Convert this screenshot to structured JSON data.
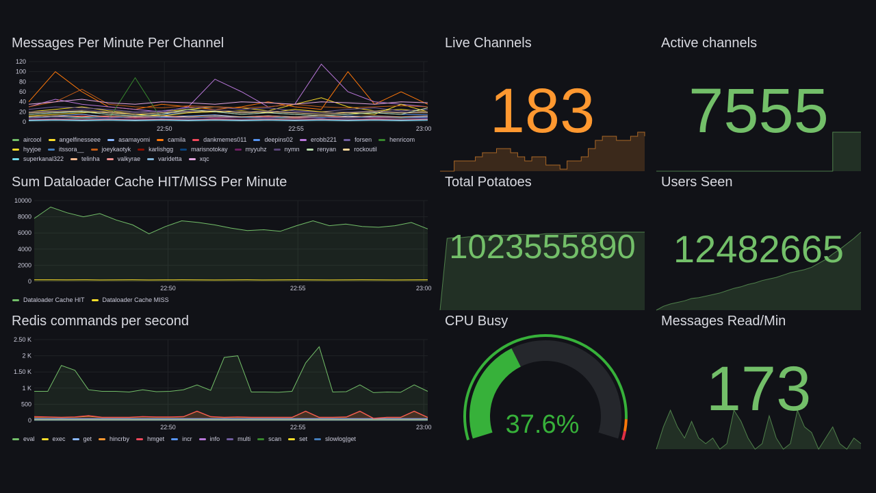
{
  "time_ticks": [
    "22:50",
    "22:55",
    "23:00"
  ],
  "colors": {
    "green": "#73bf69",
    "orange": "#ff9830",
    "gauge_green": "#37b13a",
    "red": "#e02f44",
    "track": "#25272c"
  },
  "panels": {
    "messages": {
      "title": "Messages Per Minute Per Channel"
    },
    "dataloader": {
      "title": "Sum Dataloader Cache HIT/MISS Per Minute"
    },
    "redis": {
      "title": "Redis commands per second"
    },
    "live_channels": {
      "title": "Live Channels",
      "value": "183"
    },
    "active_channels": {
      "title": "Active channels",
      "value": "7555"
    },
    "total_potatoes": {
      "title": "Total Potatoes",
      "value": "1023555890"
    },
    "users_seen": {
      "title": "Users Seen",
      "value": "12482665"
    },
    "cpu_busy": {
      "title": "CPU Busy",
      "value": "37.6%",
      "percent": 37.6
    },
    "messages_read": {
      "title": "Messages Read/Min",
      "value": "173"
    }
  },
  "chart_data": [
    {
      "type": "line",
      "title": "Messages Per Minute Per Channel",
      "x_ticks": [
        "22:50",
        "22:55",
        "23:00"
      ],
      "ylim": [
        0,
        120
      ],
      "y_ticks": [
        "0",
        "20",
        "40",
        "60",
        "80",
        "100",
        "120"
      ],
      "series": [
        {
          "name": "aircool",
          "color": "#73bf69",
          "values": [
            5,
            6,
            8,
            6,
            5,
            7,
            6,
            5,
            6,
            8,
            7,
            6,
            5,
            6,
            7,
            6
          ]
        },
        {
          "name": "angelfinesseee",
          "color": "#fade2a",
          "values": [
            20,
            25,
            30,
            22,
            18,
            20,
            25,
            30,
            28,
            22,
            35,
            48,
            30,
            22,
            25,
            20
          ]
        },
        {
          "name": "asamayomi",
          "color": "#8ab8ff",
          "values": [
            10,
            12,
            15,
            10,
            8,
            10,
            12,
            14,
            10,
            12,
            10,
            8,
            12,
            10,
            9,
            10
          ]
        },
        {
          "name": "camila",
          "color": "#ff780a",
          "values": [
            40,
            100,
            60,
            30,
            25,
            35,
            30,
            25,
            30,
            40,
            30,
            25,
            100,
            35,
            60,
            35
          ]
        },
        {
          "name": "dankmemes011",
          "color": "#f2495c",
          "values": [
            8,
            10,
            12,
            10,
            8,
            9,
            10,
            8,
            9,
            10,
            8,
            9,
            10,
            8,
            9,
            8
          ]
        },
        {
          "name": "deepins02",
          "color": "#5794f2",
          "values": [
            15,
            18,
            20,
            15,
            12,
            15,
            18,
            20,
            15,
            18,
            15,
            12,
            15,
            18,
            15,
            14
          ]
        },
        {
          "name": "erobb221",
          "color": "#b877d9",
          "values": [
            30,
            45,
            35,
            30,
            25,
            20,
            30,
            85,
            60,
            30,
            35,
            115,
            60,
            40,
            35,
            30
          ]
        },
        {
          "name": "forsen",
          "color": "#705da0",
          "values": [
            25,
            30,
            28,
            25,
            20,
            22,
            28,
            30,
            25,
            28,
            22,
            20,
            25,
            28,
            22,
            25
          ]
        },
        {
          "name": "henricom",
          "color": "#37872d",
          "values": [
            5,
            5,
            6,
            5,
            88,
            5,
            6,
            5,
            5,
            6,
            5,
            5,
            6,
            5,
            5,
            5
          ]
        },
        {
          "name": "hyyjoe",
          "color": "#fade2a",
          "values": [
            12,
            15,
            18,
            20,
            15,
            12,
            18,
            20,
            22,
            18,
            25,
            20,
            18,
            15,
            35,
            20
          ]
        },
        {
          "name": "itssora__",
          "color": "#447ebc",
          "values": [
            8,
            10,
            9,
            8,
            10,
            9,
            8,
            10,
            9,
            8,
            10,
            9,
            8,
            10,
            9,
            8
          ]
        },
        {
          "name": "joeykaotyk",
          "color": "#c15c17",
          "values": [
            30,
            40,
            65,
            35,
            30,
            28,
            32,
            30,
            28,
            30,
            35,
            30,
            28,
            30,
            32,
            30
          ]
        },
        {
          "name": "karlishgg",
          "color": "#890f02",
          "values": [
            3,
            4,
            3,
            4,
            3,
            4,
            3,
            4,
            3,
            4,
            3,
            4,
            3,
            4,
            3,
            4
          ]
        },
        {
          "name": "marisnotokay",
          "color": "#0a437c",
          "values": [
            5,
            6,
            5,
            6,
            5,
            6,
            5,
            6,
            5,
            6,
            5,
            6,
            5,
            6,
            5,
            6
          ]
        },
        {
          "name": "myyuhz",
          "color": "#6d1f62",
          "values": [
            6,
            7,
            6,
            7,
            6,
            7,
            6,
            7,
            6,
            7,
            6,
            7,
            6,
            7,
            6,
            7
          ]
        },
        {
          "name": "nymn",
          "color": "#584477",
          "values": [
            20,
            22,
            25,
            20,
            18,
            20,
            22,
            25,
            20,
            22,
            20,
            18,
            20,
            22,
            20,
            20
          ]
        },
        {
          "name": "renyan",
          "color": "#b7dbab",
          "values": [
            15,
            18,
            20,
            15,
            12,
            15,
            25,
            20,
            15,
            18,
            15,
            12,
            15,
            18,
            15,
            28
          ]
        },
        {
          "name": "rockoutil",
          "color": "#f4d598",
          "values": [
            18,
            20,
            22,
            18,
            15,
            18,
            20,
            22,
            18,
            20,
            18,
            15,
            18,
            20,
            18,
            18
          ]
        },
        {
          "name": "superkanal322",
          "color": "#70dbed",
          "values": [
            2,
            3,
            2,
            3,
            2,
            3,
            2,
            3,
            2,
            3,
            2,
            3,
            2,
            3,
            2,
            3
          ]
        },
        {
          "name": "telinha",
          "color": "#f9ba8f",
          "values": [
            10,
            12,
            10,
            12,
            10,
            12,
            10,
            12,
            10,
            12,
            10,
            12,
            10,
            12,
            10,
            12
          ]
        },
        {
          "name": "valkyrae",
          "color": "#f29191",
          "values": [
            4,
            5,
            4,
            5,
            4,
            5,
            4,
            5,
            4,
            5,
            4,
            5,
            4,
            5,
            4,
            5
          ]
        },
        {
          "name": "varidetta",
          "color": "#82b5d8",
          "values": [
            3,
            4,
            3,
            4,
            3,
            4,
            3,
            4,
            3,
            4,
            3,
            4,
            3,
            4,
            3,
            4
          ]
        },
        {
          "name": "xqc",
          "color": "#e5a8e2",
          "values": [
            35,
            40,
            45,
            38,
            35,
            40,
            38,
            35,
            40,
            38,
            35,
            40,
            38,
            35,
            40,
            38
          ]
        }
      ]
    },
    {
      "type": "area",
      "title": "Sum Dataloader Cache HIT/MISS Per Minute",
      "x_ticks": [
        "22:50",
        "22:55",
        "23:00"
      ],
      "ylim": [
        0,
        10000
      ],
      "y_ticks": [
        "0",
        "2000",
        "4000",
        "6000",
        "8000",
        "10000"
      ],
      "series": [
        {
          "name": "Dataloader Cache HIT",
          "color": "#73bf69",
          "values": [
            7800,
            9200,
            8500,
            8000,
            8400,
            7600,
            7000,
            5900,
            6800,
            7500,
            7300,
            7000,
            6600,
            6300,
            6400,
            6200,
            6900,
            7500,
            6900,
            7100,
            6800,
            6700,
            6900,
            7300,
            6500
          ]
        },
        {
          "name": "Dataloader Cache MISS",
          "color": "#fade2a",
          "values": [
            200,
            200,
            190,
            200,
            180,
            190,
            200,
            180,
            190,
            200,
            190,
            180,
            190,
            200,
            180,
            190,
            200,
            190,
            180,
            190,
            200,
            190,
            180,
            190,
            200
          ]
        }
      ]
    },
    {
      "type": "area",
      "title": "Redis commands per second",
      "x_ticks": [
        "22:50",
        "22:55",
        "23:00"
      ],
      "ylim": [
        0,
        2500
      ],
      "y_ticks": [
        "0",
        "500",
        "1 K",
        "1.50 K",
        "2 K",
        "2.50 K"
      ],
      "series": [
        {
          "name": "eval",
          "color": "#73bf69",
          "values": [
            900,
            900,
            1700,
            1550,
            950,
            900,
            900,
            880,
            950,
            890,
            900,
            950,
            1100,
            930,
            1950,
            2000,
            880,
            880,
            870,
            900,
            1780,
            2280,
            880,
            890,
            1100,
            860,
            880,
            870,
            1100,
            900
          ]
        },
        {
          "name": "exec",
          "color": "#fade2a",
          "values": [
            10,
            10,
            10,
            10,
            10,
            10,
            10,
            10,
            10,
            10,
            10,
            10,
            10,
            10,
            10,
            10,
            10,
            10,
            10,
            10,
            10,
            10,
            10,
            10,
            10,
            10,
            10,
            10,
            10,
            10
          ]
        },
        {
          "name": "get",
          "color": "#8ab8ff",
          "values": [
            60,
            60,
            60,
            60,
            60,
            60,
            60,
            60,
            60,
            60,
            60,
            60,
            60,
            60,
            60,
            60,
            60,
            60,
            60,
            60,
            60,
            60,
            60,
            60,
            60,
            60,
            60,
            60,
            60,
            60
          ]
        },
        {
          "name": "hincrby",
          "color": "#ff9830",
          "values": [
            100,
            100,
            90,
            100,
            130,
            90,
            90,
            90,
            110,
            100,
            100,
            110,
            280,
            110,
            90,
            100,
            90,
            90,
            90,
            90,
            280,
            90,
            90,
            100,
            280,
            60,
            90,
            90,
            280,
            90
          ]
        },
        {
          "name": "hmget",
          "color": "#f2495c",
          "values": [
            120,
            110,
            100,
            110,
            150,
            100,
            100,
            100,
            120,
            110,
            110,
            120,
            290,
            120,
            100,
            110,
            100,
            100,
            100,
            100,
            290,
            100,
            100,
            110,
            290,
            70,
            100,
            100,
            290,
            100
          ]
        },
        {
          "name": "incr",
          "color": "#5794f2",
          "values": [
            40,
            40,
            40,
            40,
            40,
            40,
            40,
            40,
            40,
            40,
            40,
            40,
            40,
            40,
            40,
            40,
            40,
            40,
            40,
            40,
            40,
            40,
            40,
            40,
            40,
            40,
            40,
            40,
            40,
            40
          ]
        },
        {
          "name": "info",
          "color": "#b877d9",
          "values": [
            5,
            5,
            5,
            5,
            5,
            5,
            5,
            5,
            5,
            5,
            5,
            5,
            5,
            5,
            5,
            5,
            5,
            5,
            5,
            5,
            5,
            5,
            5,
            5,
            5,
            5,
            5,
            5,
            5,
            5
          ]
        },
        {
          "name": "multi",
          "color": "#705da0",
          "values": [
            10,
            10,
            10,
            10,
            10,
            10,
            10,
            10,
            10,
            10,
            10,
            10,
            10,
            10,
            10,
            10,
            10,
            10,
            10,
            10,
            10,
            10,
            10,
            10,
            10,
            10,
            10,
            10,
            10,
            10
          ]
        },
        {
          "name": "scan",
          "color": "#37872d",
          "values": [
            2,
            2,
            2,
            2,
            2,
            2,
            2,
            2,
            2,
            2,
            2,
            2,
            2,
            2,
            2,
            2,
            2,
            2,
            2,
            2,
            2,
            2,
            2,
            2,
            2,
            2,
            2,
            2,
            2,
            2
          ]
        },
        {
          "name": "set",
          "color": "#fade2a",
          "values": [
            20,
            20,
            20,
            20,
            20,
            20,
            20,
            20,
            20,
            20,
            20,
            20,
            20,
            20,
            20,
            20,
            20,
            20,
            20,
            20,
            20,
            20,
            20,
            20,
            20,
            20,
            20,
            20,
            20,
            20
          ]
        },
        {
          "name": "slowlog|get",
          "color": "#447ebc",
          "values": [
            1,
            1,
            1,
            1,
            1,
            1,
            1,
            1,
            1,
            1,
            1,
            1,
            1,
            1,
            1,
            1,
            1,
            1,
            1,
            1,
            1,
            1,
            1,
            1,
            1,
            1,
            1,
            1,
            1,
            1
          ]
        }
      ]
    }
  ],
  "sparklines": {
    "live_channels": [
      165,
      165,
      170,
      170,
      170,
      172,
      174,
      174,
      176,
      176,
      174,
      172,
      170,
      172,
      172,
      168,
      168,
      166,
      170,
      170,
      172,
      176,
      180,
      182,
      182,
      180,
      180,
      182,
      184,
      182
    ],
    "active_channels": [
      0,
      0,
      0,
      0,
      0,
      0,
      0,
      0,
      0,
      0,
      0,
      0,
      0,
      0,
      0,
      0,
      0,
      0,
      0,
      0,
      0,
      0,
      0,
      0,
      0,
      1,
      1,
      1,
      1,
      1
    ],
    "total_potatoes": [
      0,
      0.92,
      0.93,
      0.93,
      0.94,
      0.94,
      0.95,
      0.95,
      0.96,
      0.96,
      0.96,
      0.97,
      0.97,
      0.97,
      0.97,
      0.98,
      0.98,
      0.98,
      0.98,
      0.99,
      0.99,
      0.99,
      0.99,
      1,
      1,
      1,
      1,
      1,
      1,
      1
    ],
    "users_seen": [
      0,
      0.05,
      0.08,
      0.1,
      0.12,
      0.15,
      0.16,
      0.18,
      0.2,
      0.22,
      0.25,
      0.28,
      0.3,
      0.33,
      0.35,
      0.38,
      0.4,
      0.42,
      0.45,
      0.48,
      0.5,
      0.52,
      0.55,
      0.6,
      0.65,
      0.72,
      0.78,
      0.85,
      0.92,
      1
    ],
    "messages_read": [
      140,
      160,
      175,
      160,
      150,
      165,
      150,
      145,
      150,
      140,
      145,
      175,
      165,
      150,
      140,
      145,
      170,
      150,
      140,
      145,
      175,
      160,
      155,
      140,
      150,
      160,
      145,
      140,
      150,
      145
    ]
  }
}
